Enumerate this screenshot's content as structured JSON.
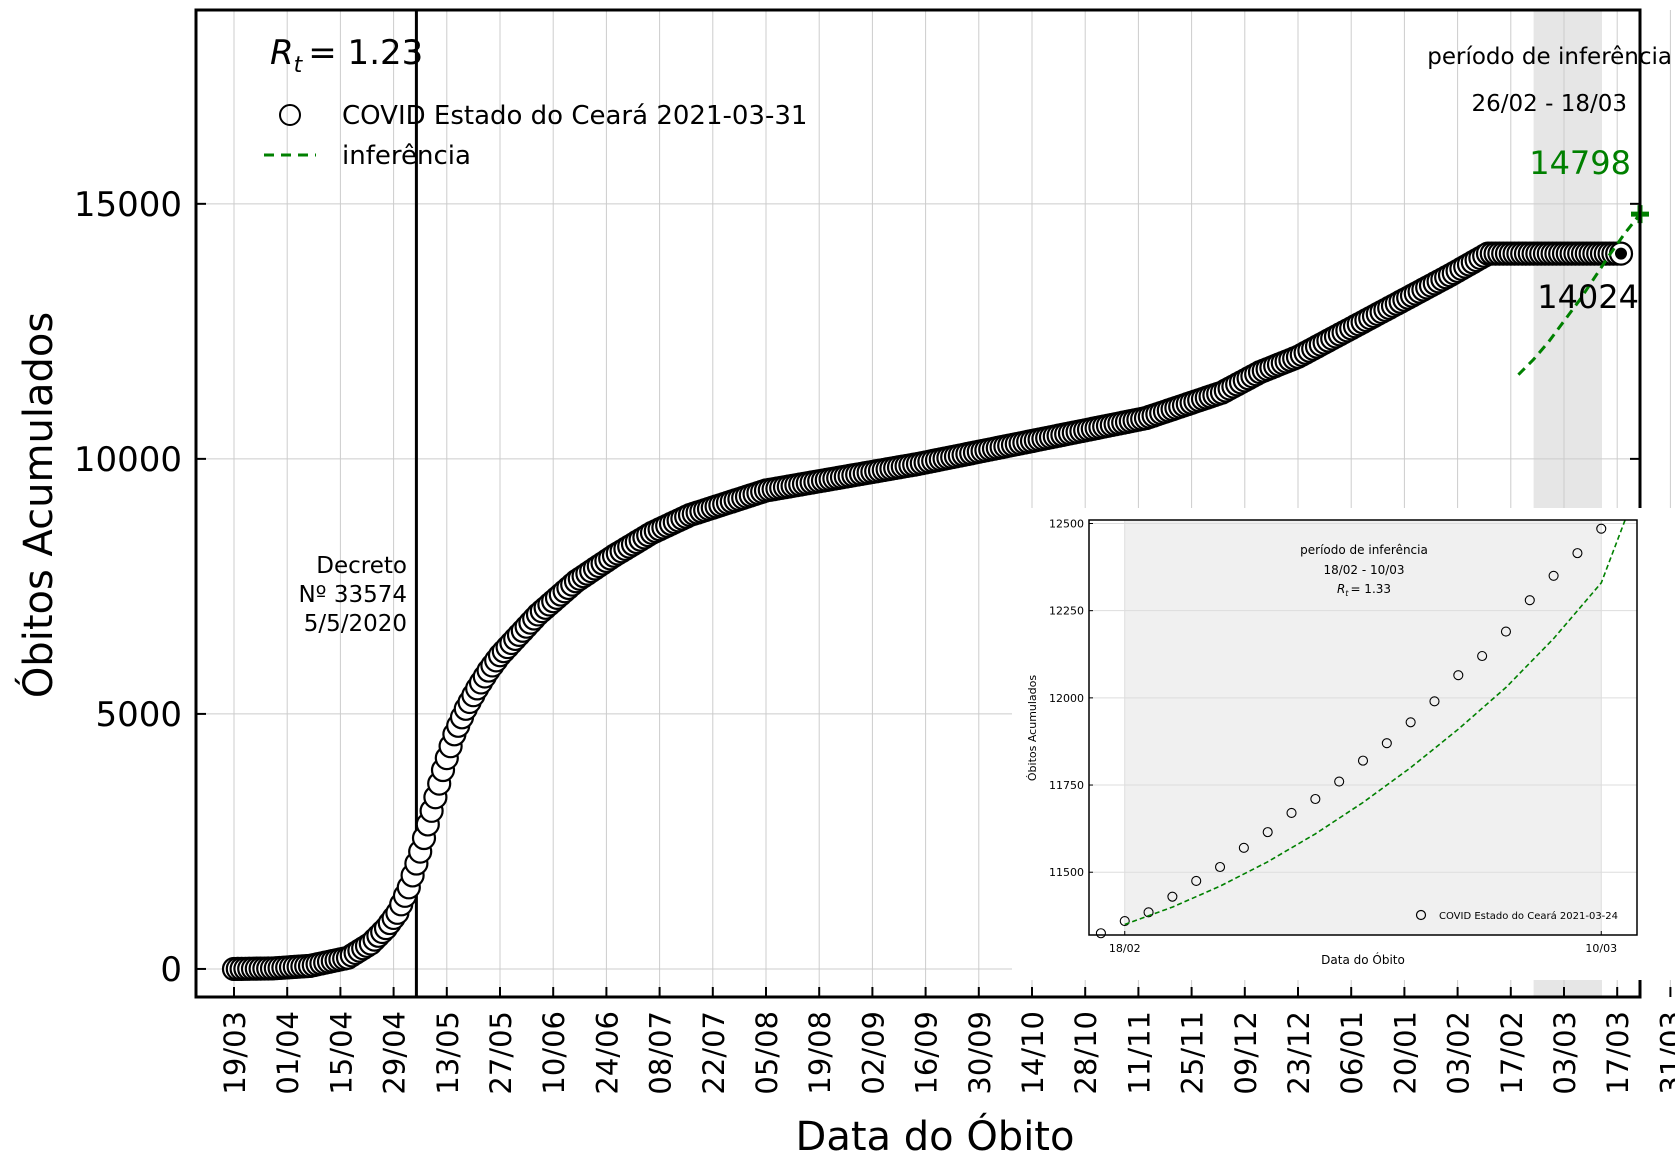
{
  "chart_data": [
    {
      "type": "scatter",
      "xlabel": "Data do Óbito",
      "ylabel": "Óbitos Acumulados",
      "yticks": [
        0,
        5000,
        10000,
        15000
      ],
      "ylim": [
        -550,
        18800
      ],
      "xlim_days": [
        -10,
        370
      ],
      "xtick_labels": [
        "19/03",
        "01/04",
        "15/04",
        "29/04",
        "13/05",
        "27/05",
        "10/06",
        "24/06",
        "08/07",
        "22/07",
        "05/08",
        "19/08",
        "02/09",
        "16/09",
        "30/09",
        "14/10",
        "28/10",
        "11/11",
        "25/11",
        "09/12",
        "23/12",
        "06/01",
        "20/01",
        "03/02",
        "17/02",
        "03/03",
        "17/03",
        "31/03"
      ],
      "grid": true,
      "legend": {
        "position": "upper-left",
        "entries": [
          "COVID Estado do Ceará 2021-03-31",
          "inferência"
        ]
      },
      "rt_label": "R_t = 1.23",
      "rt_symbol": "R",
      "rt_sub": "t",
      "rt_value": "= 1.23",
      "decree_lines": [
        "Decreto",
        "Nº 33574",
        "5/5/2020"
      ],
      "inference_period": {
        "title": "período de inferência",
        "range": "26/02 - 18/03"
      },
      "projection_label": "14798",
      "last_value_label": "14024",
      "series": [
        {
          "name": "COVID Estado do Ceará 2021-03-31",
          "kind": "scatter",
          "color": "#000000",
          "x": [
            0,
            10,
            20,
            30,
            36,
            40,
            43,
            46,
            49,
            52,
            55,
            58,
            61,
            64,
            67,
            70,
            75,
            80,
            90,
            100,
            110,
            120,
            140,
            160,
            180,
            200,
            220,
            240,
            260,
            270,
            280,
            290,
            300,
            310,
            320,
            330,
            340,
            345,
            350,
            355,
            360,
            365,
            368
          ],
          "y": [
            0,
            10,
            60,
            220,
            500,
            800,
            1100,
            1600,
            2300,
            3100,
            3900,
            4600,
            5100,
            5500,
            5850,
            6150,
            6550,
            6950,
            7600,
            8100,
            8550,
            8900,
            9380,
            9640,
            9900,
            10200,
            10500,
            10800,
            11300,
            11700,
            12000,
            12400,
            12800,
            13200,
            13600,
            14024,
            14024,
            14024,
            14024,
            14024,
            14024,
            14024,
            14024
          ]
        },
        {
          "name": "inferência",
          "kind": "dashed-line",
          "color": "#008000",
          "x": [
            338,
            342,
            346,
            350,
            354,
            358,
            362,
            366,
            370
          ],
          "y": [
            11650,
            11950,
            12300,
            12700,
            13100,
            13550,
            14000,
            14420,
            14798
          ]
        }
      ],
      "highlight_color": "#e0e0e0",
      "projection_color": "#008000"
    },
    {
      "type": "scatter",
      "xlabel": "Data do Óbito",
      "ylabel": "Óbitos Acumulados",
      "yticks": [
        11500,
        11750,
        12000,
        12250,
        12500
      ],
      "ylim": [
        11320,
        12510
      ],
      "xtick_labels": [
        "18/02",
        "10/03"
      ],
      "inference_period": {
        "title": "período de inferência",
        "range": "18/02 - 10/03"
      },
      "rt_label": "R_t = 1.33",
      "rt_symbol": "R",
      "rt_sub": "t",
      "rt_value": "= 1.33",
      "legend": {
        "position": "lower-right",
        "entries": [
          "COVID Estado do Ceará 2021-03-24"
        ]
      },
      "series": [
        {
          "name": "COVID Estado do Ceará 2021-03-24",
          "kind": "scatter",
          "color": "#000000",
          "x": [
            -1,
            0,
            1,
            2,
            3,
            4,
            5,
            6,
            7,
            8,
            9,
            10,
            11,
            12,
            13,
            14,
            15,
            16,
            17,
            18,
            19,
            20
          ],
          "y": [
            11325,
            11360,
            11385,
            11430,
            11475,
            11515,
            11570,
            11615,
            11670,
            11710,
            11760,
            11820,
            11870,
            11930,
            11990,
            12065,
            12120,
            12190,
            12280,
            12350,
            12415,
            12485
          ]
        },
        {
          "name": "inferência",
          "kind": "dashed-line",
          "color": "#008000",
          "x": [
            0,
            2,
            4,
            6,
            8,
            10,
            12,
            14,
            16,
            18,
            20,
            21
          ],
          "y": [
            11350,
            11400,
            11460,
            11530,
            11610,
            11700,
            11800,
            11910,
            12030,
            12170,
            12330,
            12510
          ]
        }
      ]
    }
  ]
}
